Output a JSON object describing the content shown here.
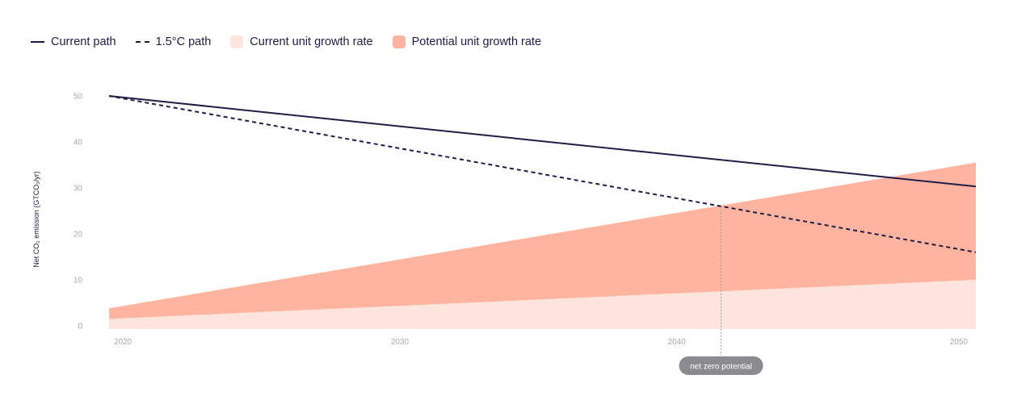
{
  "legend": [
    {
      "label": "Current path",
      "kind": "line",
      "color": "#1f1c46"
    },
    {
      "label": "1.5°C path",
      "kind": "dash",
      "color": "#1f1c46"
    },
    {
      "label": "Current unit growth rate",
      "kind": "box",
      "color": "#fde4dc"
    },
    {
      "label": "Potential unit growth rate",
      "kind": "box",
      "color": "#ffb49f"
    }
  ],
  "chart_data": {
    "type": "line",
    "title": "",
    "xlabel": "",
    "ylabel": "Net CO₂ emission (GTCO₂/yr)",
    "xlim": [
      2019.5,
      2050.8
    ],
    "ylim": [
      0,
      50
    ],
    "x_ticks": [
      2020,
      2030,
      2040,
      2050
    ],
    "y_ticks": [
      0,
      10,
      20,
      30,
      40,
      50
    ],
    "grid": false,
    "legend_position": "top-left",
    "series": [
      {
        "name": "Current path",
        "style": "solid",
        "color": "#1f1c46",
        "x": [
          2019.5,
          2050.8
        ],
        "y": [
          50,
          30.3
        ]
      },
      {
        "name": "1.5°C path",
        "style": "dashed",
        "color": "#1f1c46",
        "x": [
          2019.5,
          2050.8
        ],
        "y": [
          50,
          16
        ]
      }
    ],
    "areas": [
      {
        "name": "Potential unit growth rate",
        "color": "#ffb49f",
        "x": [
          2019.5,
          2050.8
        ],
        "y": [
          3.8,
          35.5
        ]
      },
      {
        "name": "Current unit growth rate",
        "color": "#fde4dc",
        "x": [
          2019.5,
          2050.8
        ],
        "y": [
          1.5,
          10
        ]
      }
    ],
    "annotations": [
      {
        "text": "net zero potential",
        "x": 2041.6,
        "y": 26
      }
    ]
  }
}
